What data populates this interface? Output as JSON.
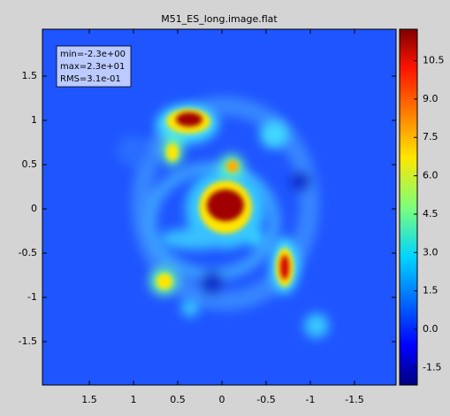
{
  "chart_data": {
    "type": "image",
    "title": "M51_ES_long.image.flat",
    "annotations": [
      "min=-2.3e+00",
      "max=2.3e+01",
      "RMS=3.1e-01"
    ],
    "xlim": [
      2.03,
      -1.97
    ],
    "xticks": [
      1.5,
      1.0,
      0.5,
      0.0,
      -0.5,
      -1.0,
      -1.5
    ],
    "ylim": [
      -1.99,
      2.03
    ],
    "yticks": [
      1.5,
      1.0,
      0.5,
      0.0,
      -0.5,
      -1.0,
      -1.5
    ],
    "colorbar_lim": [
      -2.18,
      11.73
    ],
    "colorbar_ticks": [
      {
        "value": 10.5,
        "label": "10.5"
      },
      {
        "value": 9,
        "label": "9.0"
      },
      {
        "value": 7.5,
        "label": "7.5"
      },
      {
        "value": 6,
        "label": "6.0"
      },
      {
        "value": 4.5,
        "label": "4.5"
      },
      {
        "value": 3,
        "label": "3.0"
      },
      {
        "value": 1.5,
        "label": "1.5"
      },
      {
        "value": 0,
        "label": "0.0"
      },
      {
        "value": -1.5,
        "label": "-1.5"
      }
    ]
  }
}
